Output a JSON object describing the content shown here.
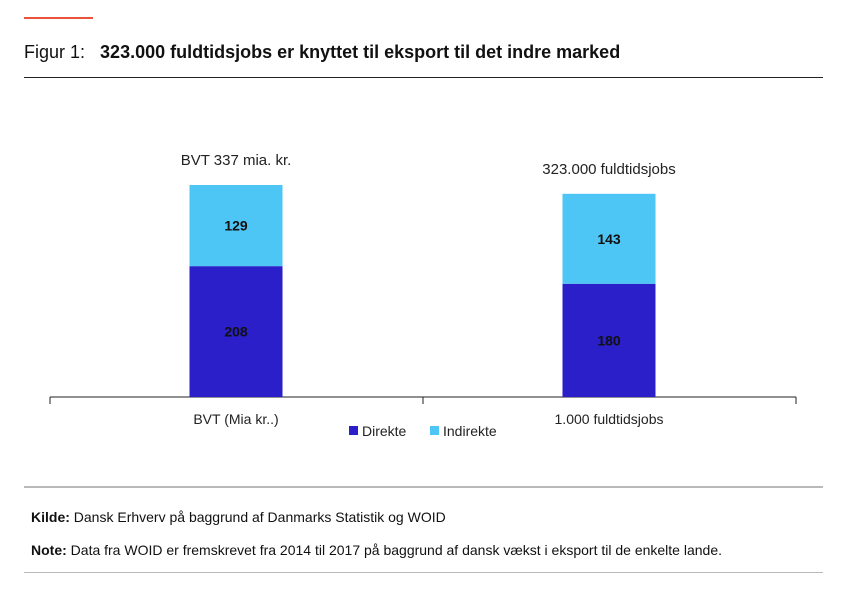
{
  "figure": {
    "label": "Figur 1:",
    "title": "323.000 fuldtidsjobs er knyttet til eksport til det indre marked"
  },
  "chart_data": {
    "type": "bar",
    "stacked": true,
    "categories": [
      "BVT (Mia kr..)",
      "1.000 fuldtidsjobs"
    ],
    "bar_titles": [
      "BVT 337 mia. kr.",
      "323.000 fuldtidsjobs"
    ],
    "series": [
      {
        "name": "Direkte",
        "color": "#2a1fc8",
        "values": [
          208,
          180
        ]
      },
      {
        "name": "Indirekte",
        "color": "#4ec6f5",
        "values": [
          129,
          143
        ]
      }
    ],
    "ylim": [
      0,
      350
    ],
    "legend_position": "bottom-center"
  },
  "footer": {
    "source_label": "Kilde:",
    "source_text": "Dansk Erhverv på baggrund af Danmarks Statistik og WOID",
    "note_label": "Note:",
    "note_text": "Data fra WOID er fremskrevet fra 2014 til 2017 på baggrund af dansk vækst i eksport til de enkelte lande."
  },
  "colors": {
    "accent": "#e8533a"
  }
}
